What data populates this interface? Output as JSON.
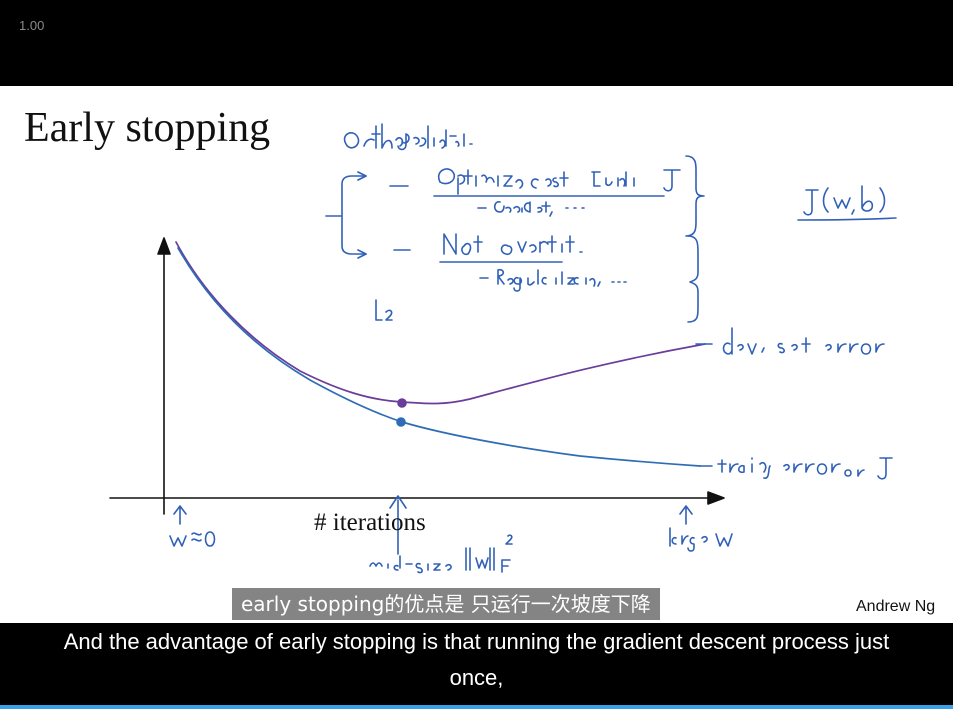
{
  "player": {
    "speed": "1.00",
    "progress": 1.0
  },
  "slide": {
    "title": "Early stopping",
    "author": "Andrew Ng",
    "xlabel": "# iterations",
    "handwritten": {
      "heading": "Orthogonalization.",
      "item1": "Optimize cost function J",
      "item1_sub": "- Gradient, ...",
      "item2": "Not overfit.",
      "item2_sub": "- Regularization, ....",
      "cost": "J(w,b)",
      "l2": "L2",
      "dev_label": "dev set error",
      "train_label": "train error or J",
      "w_zero": "w ≈ 0",
      "mid_size": "mid-size ||w||²_F",
      "large_w": "large w"
    },
    "colors": {
      "dev_curve": "#6a3d9a",
      "train_curve": "#2e6db5",
      "ink": "#3060b8"
    }
  },
  "subtitles": {
    "chinese": "early stopping的优点是 只运行一次坡度下降",
    "english": "And the advantage of early stopping is that running the gradient descent process just once,"
  }
}
